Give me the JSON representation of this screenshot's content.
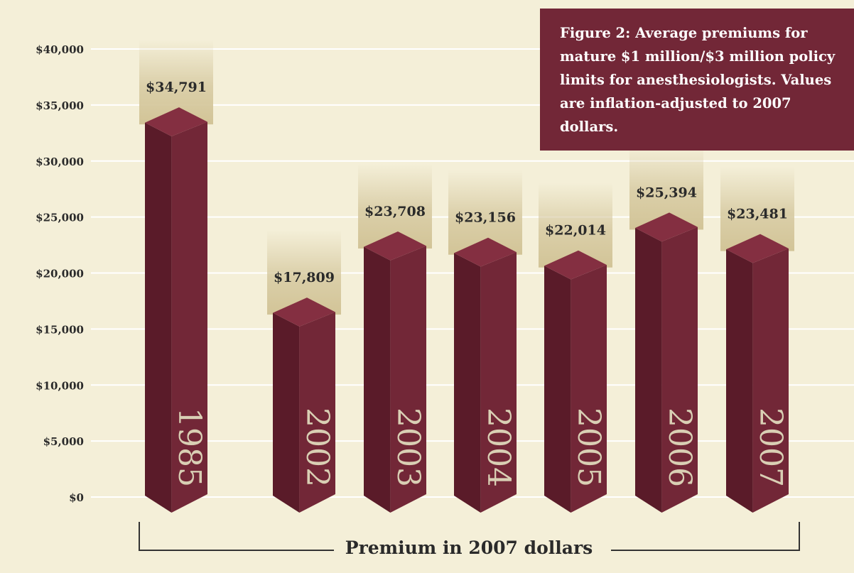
{
  "chart_data": {
    "type": "bar",
    "title": "Figure 2:  Average premiums for mature $1 million/$3 million policy limits for anesthesiologists. Values are inflation-adjusted to 2007 dollars.",
    "xlabel": "Premium in 2007 dollars",
    "ylabel": "",
    "categories": [
      "1985",
      "2002",
      "2003",
      "2004",
      "2005",
      "2006",
      "2007"
    ],
    "values": [
      34791,
      17809,
      23708,
      23156,
      22014,
      25394,
      23481
    ],
    "data_labels": [
      "$34,791",
      "$17,809",
      "$23,708",
      "$23,156",
      "$22,014",
      "$25,394",
      "$23,481"
    ],
    "yticks": [
      0,
      5000,
      10000,
      15000,
      20000,
      25000,
      30000,
      35000,
      40000
    ],
    "ytick_labels": [
      "$0",
      "$5,000",
      "$10,000",
      "$15,000",
      "$20,000",
      "$25,000",
      "$30,000",
      "$35,000",
      "$40,000"
    ],
    "ylim": [
      0,
      40000
    ],
    "grid": true,
    "legend": "none",
    "colors": {
      "background": "#f4efd8",
      "bar_front": "#722737",
      "bar_side": "#5a1b29",
      "bar_top": "#842f41",
      "glow": "#d6c9a0",
      "gridline": "#ffffff",
      "title_box": "#722737",
      "year_text": "#d9cfb4",
      "text": "#2a2a2a"
    }
  }
}
